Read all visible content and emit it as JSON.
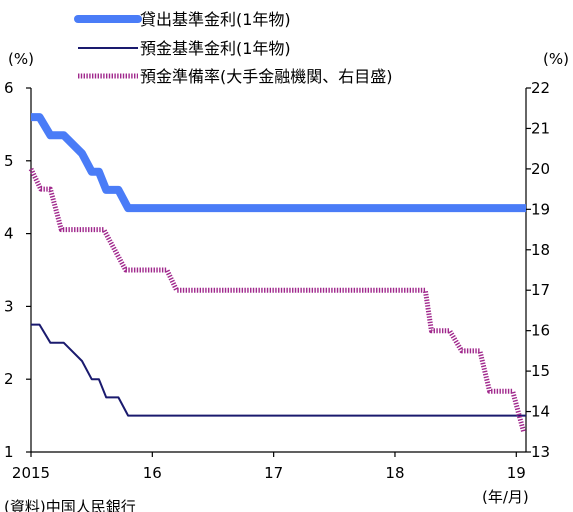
{
  "chart_data": {
    "type": "line",
    "y_left_unit": "(%)",
    "y_right_unit": "(%)",
    "x_unit": "(年/月)",
    "source": "(資料)中国人民銀行",
    "x_range": [
      2015.0,
      2019.08
    ],
    "x_tick_labels": [
      {
        "x": 2015,
        "label": "2015"
      },
      {
        "x": 2016,
        "label": "16"
      },
      {
        "x": 2017,
        "label": "17"
      },
      {
        "x": 2018,
        "label": "18"
      },
      {
        "x": 2019,
        "label": "19"
      }
    ],
    "y_left": {
      "min": 1,
      "max": 6,
      "ticks": [
        "1",
        "2",
        "3",
        "4",
        "5",
        "6"
      ]
    },
    "y_right": {
      "min": 13,
      "max": 22,
      "ticks": [
        "13",
        "14",
        "15",
        "16",
        "17",
        "18",
        "19",
        "20",
        "21",
        "22"
      ]
    },
    "series": [
      {
        "name": "貸出基準金利(1年物)",
        "axis": "left",
        "color": "#4a7cf7",
        "style": "thick",
        "points": [
          [
            2015.0,
            5.6
          ],
          [
            2015.07,
            5.6
          ],
          [
            2015.16,
            5.35
          ],
          [
            2015.27,
            5.35
          ],
          [
            2015.42,
            5.1
          ],
          [
            2015.5,
            4.85
          ],
          [
            2015.56,
            4.85
          ],
          [
            2015.62,
            4.6
          ],
          [
            2015.72,
            4.6
          ],
          [
            2015.8,
            4.35
          ],
          [
            2019.08,
            4.35
          ]
        ]
      },
      {
        "name": "預金基準金利(1年物)",
        "axis": "left",
        "color": "#1a1a6e",
        "style": "thin",
        "points": [
          [
            2015.0,
            2.75
          ],
          [
            2015.07,
            2.75
          ],
          [
            2015.16,
            2.5
          ],
          [
            2015.27,
            2.5
          ],
          [
            2015.42,
            2.25
          ],
          [
            2015.5,
            2.0
          ],
          [
            2015.56,
            2.0
          ],
          [
            2015.62,
            1.75
          ],
          [
            2015.72,
            1.75
          ],
          [
            2015.8,
            1.5
          ],
          [
            2019.08,
            1.5
          ]
        ]
      },
      {
        "name": "預金準備率(大手金融機関、右目盛)",
        "axis": "right",
        "color": "#a0288c",
        "style": "hatched",
        "points": [
          [
            2015.0,
            20.0
          ],
          [
            2015.08,
            19.5
          ],
          [
            2015.16,
            19.5
          ],
          [
            2015.25,
            18.5
          ],
          [
            2015.6,
            18.5
          ],
          [
            2015.78,
            17.5
          ],
          [
            2016.12,
            17.5
          ],
          [
            2016.2,
            17.0
          ],
          [
            2018.25,
            17.0
          ],
          [
            2018.3,
            16.0
          ],
          [
            2018.45,
            16.0
          ],
          [
            2018.55,
            15.5
          ],
          [
            2018.7,
            15.5
          ],
          [
            2018.78,
            14.5
          ],
          [
            2018.97,
            14.5
          ],
          [
            2019.06,
            13.5
          ]
        ]
      }
    ]
  }
}
